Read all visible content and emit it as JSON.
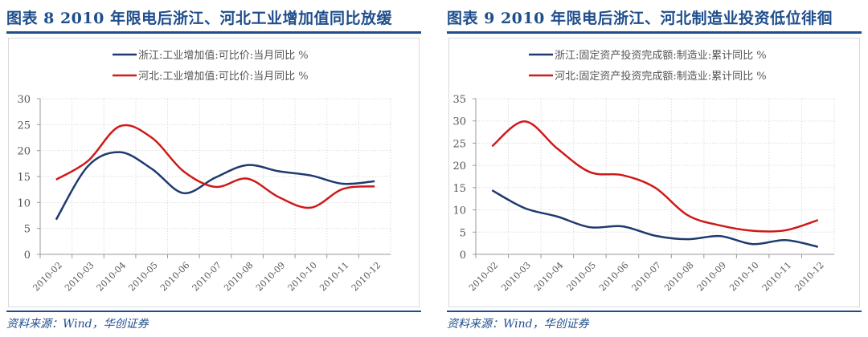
{
  "chart_data": [
    {
      "type": "line",
      "title": "图表 8   2010 年限电后浙江、河北工业增加值同比放缓",
      "categories": [
        "2010-02",
        "2010-03",
        "2010-04",
        "2010-05",
        "2010-06",
        "2010-07",
        "2010-08",
        "2010-09",
        "2010-10",
        "2010-11",
        "2010-12"
      ],
      "ylim": [
        0,
        30
      ],
      "yticks": [
        0,
        5,
        10,
        15,
        20,
        25,
        30
      ],
      "grid": true,
      "legend": "top-center",
      "series": [
        {
          "name": "浙江:工业增加值:可比价:当月同比 %",
          "color": "#1f3a6e",
          "values": [
            6.7,
            17.0,
            19.7,
            16.5,
            11.8,
            14.8,
            17.2,
            16.0,
            15.2,
            13.6,
            14.1
          ]
        },
        {
          "name": "河北:工业增加值:可比价:当月同比 %",
          "color": "#d01919",
          "values": [
            14.4,
            18.0,
            24.7,
            22.5,
            16.0,
            13.0,
            14.6,
            11.0,
            9.0,
            12.6,
            13.1
          ]
        }
      ],
      "source": "资料来源：Wind，华创证券"
    },
    {
      "type": "line",
      "title": "图表 9   2010 年限电后浙江、河北制造业投资低位徘徊",
      "categories": [
        "2010-02",
        "2010-03",
        "2010-04",
        "2010-05",
        "2010-06",
        "2010-07",
        "2010-08",
        "2010-09",
        "2010-10",
        "2010-11",
        "2010-12"
      ],
      "ylim": [
        0,
        35
      ],
      "yticks": [
        0,
        5,
        10,
        15,
        20,
        25,
        30,
        35
      ],
      "grid": true,
      "legend": "top-center",
      "series": [
        {
          "name": "浙江:固定资产投资完成额:制造业:累计同比 %",
          "color": "#1f3a6e",
          "values": [
            14.4,
            10.4,
            8.5,
            6.1,
            6.3,
            4.2,
            3.4,
            4.1,
            2.3,
            3.2,
            1.7
          ]
        },
        {
          "name": "河北:固定资产投资完成额:制造业:累计同比 %",
          "color": "#d01919",
          "values": [
            24.3,
            29.9,
            23.8,
            18.5,
            17.8,
            15.0,
            8.8,
            6.5,
            5.3,
            5.4,
            7.7
          ]
        }
      ],
      "source": "资料来源：Wind，华创证券"
    }
  ]
}
